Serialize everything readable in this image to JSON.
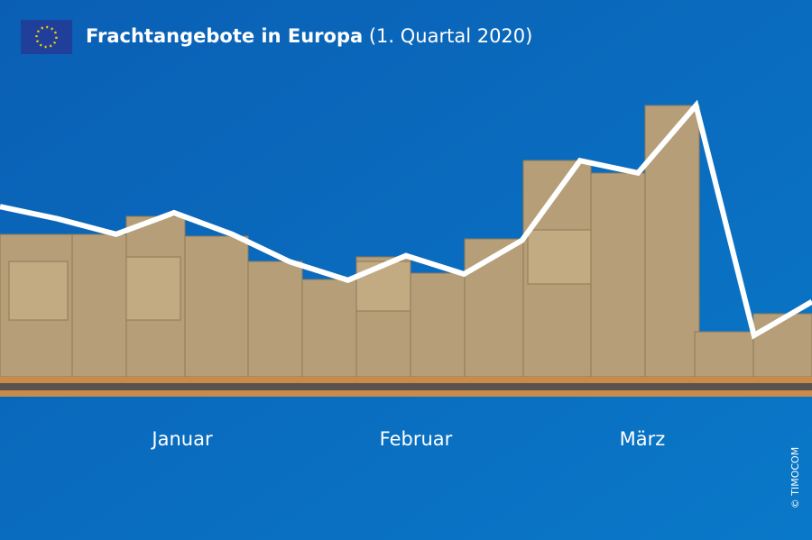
{
  "chart_data": {
    "type": "line",
    "title": "Frachtangebote in Europa",
    "subtitle": "(1. Quartal 2020)",
    "categories": [
      null,
      null,
      null,
      null,
      null,
      null,
      null,
      null,
      null,
      null,
      null,
      null,
      null,
      null,
      null
    ],
    "series": [
      {
        "name": null,
        "color": "#ffffff",
        "values": [
          62,
          58,
          53,
          60,
          53,
          44,
          38,
          46,
          40,
          51,
          77,
          73,
          95,
          20,
          31
        ]
      }
    ],
    "ylim": [
      0,
      100
    ],
    "month_labels": [
      "Januar",
      "Februar",
      "März"
    ],
    "credit": "© TIMOCOM"
  }
}
